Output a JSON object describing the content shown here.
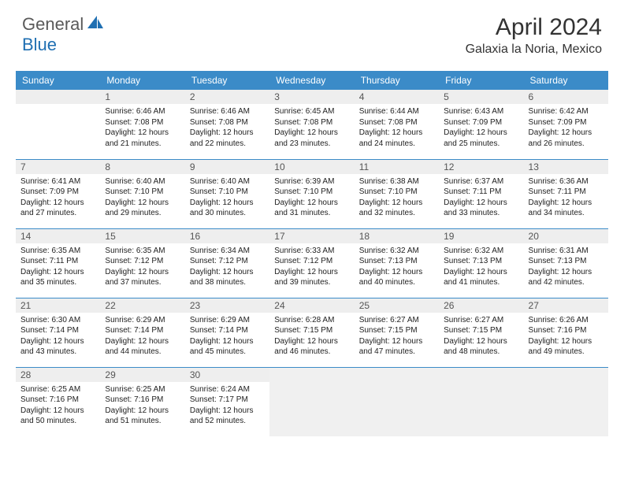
{
  "brand": {
    "text_general": "General",
    "text_blue": "Blue",
    "icon_color": "#1f6fb2"
  },
  "header": {
    "month_title": "April 2024",
    "location": "Galaxia la Noria, Mexico"
  },
  "colors": {
    "header_bg": "#3b8bc8",
    "header_text": "#ffffff",
    "daynum_bg": "#eeeeee",
    "daynum_text": "#555555",
    "border": "#3b8bc8",
    "body_text": "#222222",
    "trailing_bg": "#f0f0f0"
  },
  "typography": {
    "month_title_fontsize": 30,
    "location_fontsize": 16,
    "dayheader_fontsize": 12,
    "daynum_fontsize": 12,
    "cell_fontsize": 10
  },
  "day_headers": [
    "Sunday",
    "Monday",
    "Tuesday",
    "Wednesday",
    "Thursday",
    "Friday",
    "Saturday"
  ],
  "weeks": [
    [
      {
        "blank": true
      },
      {
        "day": "1",
        "sunrise": "Sunrise: 6:46 AM",
        "sunset": "Sunset: 7:08 PM",
        "dl1": "Daylight: 12 hours",
        "dl2": "and 21 minutes."
      },
      {
        "day": "2",
        "sunrise": "Sunrise: 6:46 AM",
        "sunset": "Sunset: 7:08 PM",
        "dl1": "Daylight: 12 hours",
        "dl2": "and 22 minutes."
      },
      {
        "day": "3",
        "sunrise": "Sunrise: 6:45 AM",
        "sunset": "Sunset: 7:08 PM",
        "dl1": "Daylight: 12 hours",
        "dl2": "and 23 minutes."
      },
      {
        "day": "4",
        "sunrise": "Sunrise: 6:44 AM",
        "sunset": "Sunset: 7:08 PM",
        "dl1": "Daylight: 12 hours",
        "dl2": "and 24 minutes."
      },
      {
        "day": "5",
        "sunrise": "Sunrise: 6:43 AM",
        "sunset": "Sunset: 7:09 PM",
        "dl1": "Daylight: 12 hours",
        "dl2": "and 25 minutes."
      },
      {
        "day": "6",
        "sunrise": "Sunrise: 6:42 AM",
        "sunset": "Sunset: 7:09 PM",
        "dl1": "Daylight: 12 hours",
        "dl2": "and 26 minutes."
      }
    ],
    [
      {
        "day": "7",
        "sunrise": "Sunrise: 6:41 AM",
        "sunset": "Sunset: 7:09 PM",
        "dl1": "Daylight: 12 hours",
        "dl2": "and 27 minutes."
      },
      {
        "day": "8",
        "sunrise": "Sunrise: 6:40 AM",
        "sunset": "Sunset: 7:10 PM",
        "dl1": "Daylight: 12 hours",
        "dl2": "and 29 minutes."
      },
      {
        "day": "9",
        "sunrise": "Sunrise: 6:40 AM",
        "sunset": "Sunset: 7:10 PM",
        "dl1": "Daylight: 12 hours",
        "dl2": "and 30 minutes."
      },
      {
        "day": "10",
        "sunrise": "Sunrise: 6:39 AM",
        "sunset": "Sunset: 7:10 PM",
        "dl1": "Daylight: 12 hours",
        "dl2": "and 31 minutes."
      },
      {
        "day": "11",
        "sunrise": "Sunrise: 6:38 AM",
        "sunset": "Sunset: 7:10 PM",
        "dl1": "Daylight: 12 hours",
        "dl2": "and 32 minutes."
      },
      {
        "day": "12",
        "sunrise": "Sunrise: 6:37 AM",
        "sunset": "Sunset: 7:11 PM",
        "dl1": "Daylight: 12 hours",
        "dl2": "and 33 minutes."
      },
      {
        "day": "13",
        "sunrise": "Sunrise: 6:36 AM",
        "sunset": "Sunset: 7:11 PM",
        "dl1": "Daylight: 12 hours",
        "dl2": "and 34 minutes."
      }
    ],
    [
      {
        "day": "14",
        "sunrise": "Sunrise: 6:35 AM",
        "sunset": "Sunset: 7:11 PM",
        "dl1": "Daylight: 12 hours",
        "dl2": "and 35 minutes."
      },
      {
        "day": "15",
        "sunrise": "Sunrise: 6:35 AM",
        "sunset": "Sunset: 7:12 PM",
        "dl1": "Daylight: 12 hours",
        "dl2": "and 37 minutes."
      },
      {
        "day": "16",
        "sunrise": "Sunrise: 6:34 AM",
        "sunset": "Sunset: 7:12 PM",
        "dl1": "Daylight: 12 hours",
        "dl2": "and 38 minutes."
      },
      {
        "day": "17",
        "sunrise": "Sunrise: 6:33 AM",
        "sunset": "Sunset: 7:12 PM",
        "dl1": "Daylight: 12 hours",
        "dl2": "and 39 minutes."
      },
      {
        "day": "18",
        "sunrise": "Sunrise: 6:32 AM",
        "sunset": "Sunset: 7:13 PM",
        "dl1": "Daylight: 12 hours",
        "dl2": "and 40 minutes."
      },
      {
        "day": "19",
        "sunrise": "Sunrise: 6:32 AM",
        "sunset": "Sunset: 7:13 PM",
        "dl1": "Daylight: 12 hours",
        "dl2": "and 41 minutes."
      },
      {
        "day": "20",
        "sunrise": "Sunrise: 6:31 AM",
        "sunset": "Sunset: 7:13 PM",
        "dl1": "Daylight: 12 hours",
        "dl2": "and 42 minutes."
      }
    ],
    [
      {
        "day": "21",
        "sunrise": "Sunrise: 6:30 AM",
        "sunset": "Sunset: 7:14 PM",
        "dl1": "Daylight: 12 hours",
        "dl2": "and 43 minutes."
      },
      {
        "day": "22",
        "sunrise": "Sunrise: 6:29 AM",
        "sunset": "Sunset: 7:14 PM",
        "dl1": "Daylight: 12 hours",
        "dl2": "and 44 minutes."
      },
      {
        "day": "23",
        "sunrise": "Sunrise: 6:29 AM",
        "sunset": "Sunset: 7:14 PM",
        "dl1": "Daylight: 12 hours",
        "dl2": "and 45 minutes."
      },
      {
        "day": "24",
        "sunrise": "Sunrise: 6:28 AM",
        "sunset": "Sunset: 7:15 PM",
        "dl1": "Daylight: 12 hours",
        "dl2": "and 46 minutes."
      },
      {
        "day": "25",
        "sunrise": "Sunrise: 6:27 AM",
        "sunset": "Sunset: 7:15 PM",
        "dl1": "Daylight: 12 hours",
        "dl2": "and 47 minutes."
      },
      {
        "day": "26",
        "sunrise": "Sunrise: 6:27 AM",
        "sunset": "Sunset: 7:15 PM",
        "dl1": "Daylight: 12 hours",
        "dl2": "and 48 minutes."
      },
      {
        "day": "27",
        "sunrise": "Sunrise: 6:26 AM",
        "sunset": "Sunset: 7:16 PM",
        "dl1": "Daylight: 12 hours",
        "dl2": "and 49 minutes."
      }
    ],
    [
      {
        "day": "28",
        "sunrise": "Sunrise: 6:25 AM",
        "sunset": "Sunset: 7:16 PM",
        "dl1": "Daylight: 12 hours",
        "dl2": "and 50 minutes."
      },
      {
        "day": "29",
        "sunrise": "Sunrise: 6:25 AM",
        "sunset": "Sunset: 7:16 PM",
        "dl1": "Daylight: 12 hours",
        "dl2": "and 51 minutes."
      },
      {
        "day": "30",
        "sunrise": "Sunrise: 6:24 AM",
        "sunset": "Sunset: 7:17 PM",
        "dl1": "Daylight: 12 hours",
        "dl2": "and 52 minutes."
      },
      {
        "trailing": true
      },
      {
        "trailing": true
      },
      {
        "trailing": true
      },
      {
        "trailing": true
      }
    ]
  ]
}
